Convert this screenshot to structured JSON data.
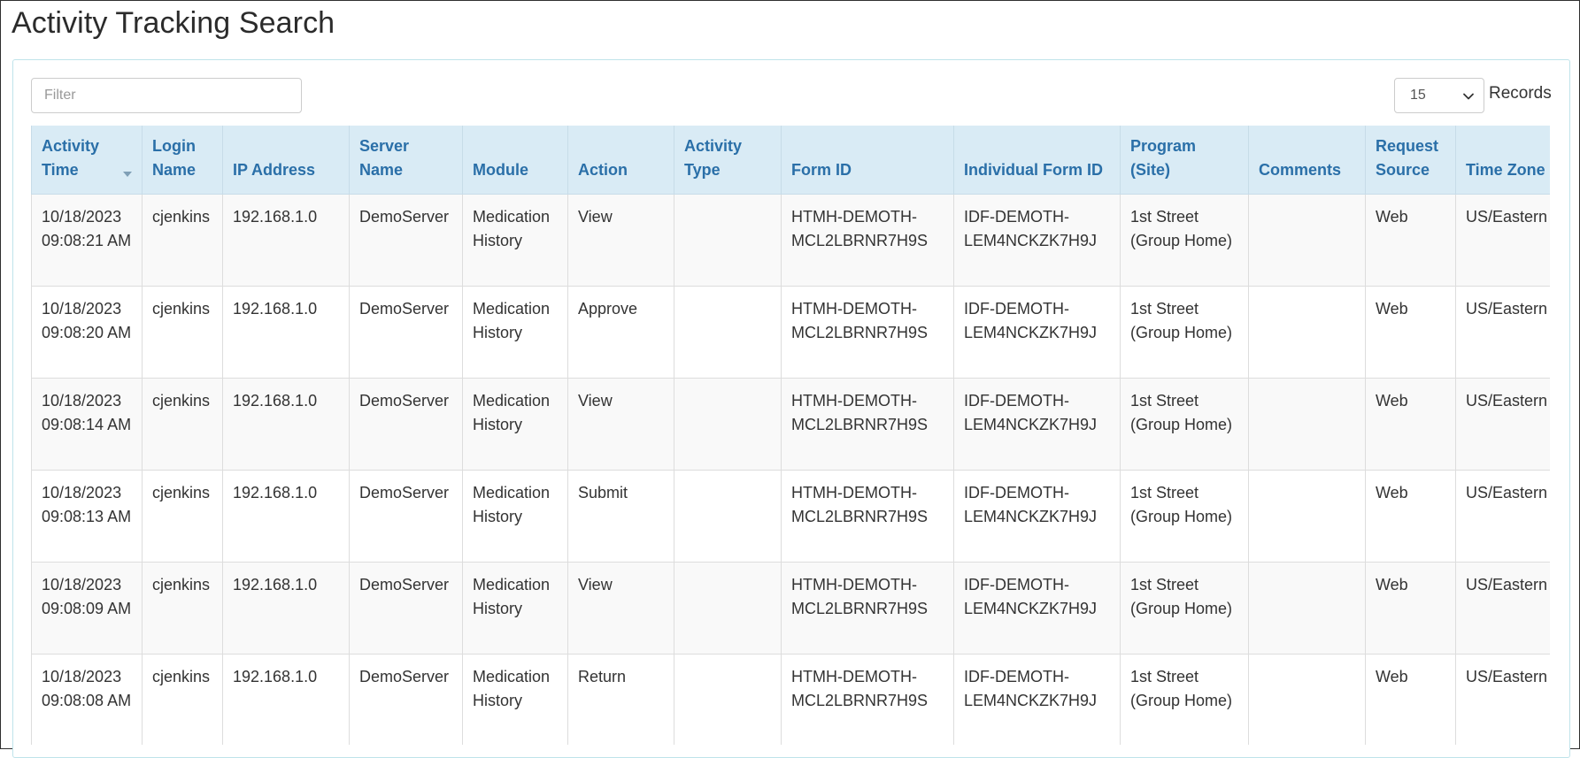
{
  "page": {
    "title": "Activity Tracking Search"
  },
  "filter": {
    "placeholder": "Filter",
    "value": ""
  },
  "records": {
    "selected": "15",
    "label": "Records"
  },
  "colors": {
    "header_bg": "#d9ebf5",
    "header_text": "#2a6fa8",
    "row_stripe": "#f9f9f9",
    "panel_border": "#bfe3ea"
  },
  "table": {
    "sorted_column": "Activity Time",
    "sort_direction": "descending",
    "columns": [
      "Activity Time",
      "Login Name",
      "IP Address",
      "Server Name",
      "Module",
      "Action",
      "Activity Type",
      "Form ID",
      "Individual Form ID",
      "Program (Site)",
      "Comments",
      "Request Source",
      "Time Zone"
    ],
    "rows": [
      [
        "10/18/2023 09:08:21 AM",
        "cjenkins",
        "192.168.1.0",
        "DemoServer",
        "Medication History",
        "View",
        "",
        "HTMH-DEMOTH-MCL2LBRNR7H9S",
        "IDF-DEMOTH-LEM4NCKZK7H9J",
        "1st Street (Group Home)",
        "",
        "Web",
        "US/Eastern"
      ],
      [
        "10/18/2023 09:08:20 AM",
        "cjenkins",
        "192.168.1.0",
        "DemoServer",
        "Medication History",
        "Approve",
        "",
        "HTMH-DEMOTH-MCL2LBRNR7H9S",
        "IDF-DEMOTH-LEM4NCKZK7H9J",
        "1st Street (Group Home)",
        "",
        "Web",
        "US/Eastern"
      ],
      [
        "10/18/2023 09:08:14 AM",
        "cjenkins",
        "192.168.1.0",
        "DemoServer",
        "Medication History",
        "View",
        "",
        "HTMH-DEMOTH-MCL2LBRNR7H9S",
        "IDF-DEMOTH-LEM4NCKZK7H9J",
        "1st Street (Group Home)",
        "",
        "Web",
        "US/Eastern"
      ],
      [
        "10/18/2023 09:08:13 AM",
        "cjenkins",
        "192.168.1.0",
        "DemoServer",
        "Medication History",
        "Submit",
        "",
        "HTMH-DEMOTH-MCL2LBRNR7H9S",
        "IDF-DEMOTH-LEM4NCKZK7H9J",
        "1st Street (Group Home)",
        "",
        "Web",
        "US/Eastern"
      ],
      [
        "10/18/2023 09:08:09 AM",
        "cjenkins",
        "192.168.1.0",
        "DemoServer",
        "Medication History",
        "View",
        "",
        "HTMH-DEMOTH-MCL2LBRNR7H9S",
        "IDF-DEMOTH-LEM4NCKZK7H9J",
        "1st Street (Group Home)",
        "",
        "Web",
        "US/Eastern"
      ],
      [
        "10/18/2023 09:08:08 AM",
        "cjenkins",
        "192.168.1.0",
        "DemoServer",
        "Medication History",
        "Return",
        "",
        "HTMH-DEMOTH-MCL2LBRNR7H9S",
        "IDF-DEMOTH-LEM4NCKZK7H9J",
        "1st Street (Group Home)",
        "",
        "Web",
        "US/Eastern"
      ]
    ]
  }
}
